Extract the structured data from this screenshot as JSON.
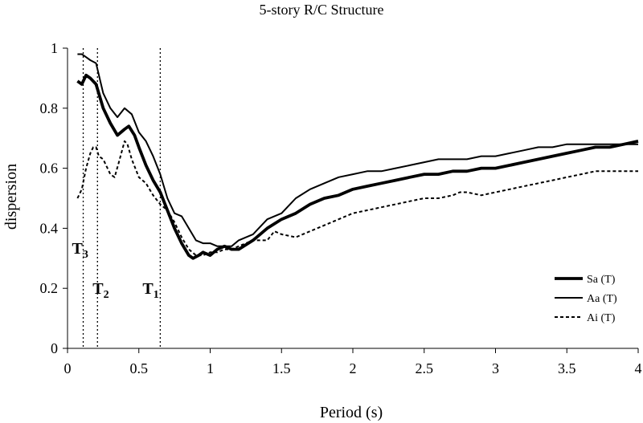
{
  "chart_data": {
    "type": "line",
    "title": "5-story R/C Structure",
    "xlabel": "Period (s)",
    "ylabel": "dispersion",
    "xlim": [
      0,
      4
    ],
    "ylim": [
      0,
      1
    ],
    "x_ticks": [
      0,
      0.5,
      1,
      1.5,
      2,
      2.5,
      3,
      3.5,
      4
    ],
    "y_ticks": [
      0,
      0.2,
      0.4,
      0.6,
      0.8,
      1
    ],
    "x_tick_labels": [
      "0",
      "0.5",
      "1",
      "1.5",
      "2",
      "2.5",
      "3",
      "3.5",
      "4"
    ],
    "y_tick_labels": [
      "0",
      "0.2",
      "0.4",
      "0.6",
      "0.8",
      "1"
    ],
    "grid": false,
    "legend_position": "bottom-right",
    "vertical_markers": [
      {
        "label": "T",
        "sub": "3",
        "x": 0.11
      },
      {
        "label": "T",
        "sub": "2",
        "x": 0.21
      },
      {
        "label": "T",
        "sub": "1",
        "x": 0.65
      }
    ],
    "series": [
      {
        "name": "Sa (T)",
        "style": "thick",
        "x": [
          0.07,
          0.1,
          0.13,
          0.16,
          0.2,
          0.25,
          0.3,
          0.35,
          0.4,
          0.43,
          0.47,
          0.5,
          0.55,
          0.6,
          0.65,
          0.7,
          0.75,
          0.8,
          0.85,
          0.88,
          0.92,
          0.95,
          1.0,
          1.05,
          1.1,
          1.15,
          1.2,
          1.3,
          1.4,
          1.5,
          1.6,
          1.7,
          1.8,
          1.9,
          2.0,
          2.1,
          2.2,
          2.3,
          2.4,
          2.5,
          2.6,
          2.7,
          2.8,
          2.9,
          3.0,
          3.1,
          3.2,
          3.3,
          3.4,
          3.5,
          3.6,
          3.7,
          3.8,
          3.9,
          4.0
        ],
        "y": [
          0.89,
          0.88,
          0.91,
          0.9,
          0.88,
          0.8,
          0.75,
          0.71,
          0.73,
          0.74,
          0.71,
          0.67,
          0.61,
          0.56,
          0.52,
          0.46,
          0.4,
          0.35,
          0.31,
          0.3,
          0.31,
          0.32,
          0.31,
          0.33,
          0.34,
          0.33,
          0.33,
          0.36,
          0.4,
          0.43,
          0.45,
          0.48,
          0.5,
          0.51,
          0.53,
          0.54,
          0.55,
          0.56,
          0.57,
          0.58,
          0.58,
          0.59,
          0.59,
          0.6,
          0.6,
          0.61,
          0.62,
          0.63,
          0.64,
          0.65,
          0.66,
          0.67,
          0.67,
          0.68,
          0.69
        ]
      },
      {
        "name": "Aa (T)",
        "style": "thin",
        "x": [
          0.07,
          0.1,
          0.13,
          0.16,
          0.2,
          0.25,
          0.3,
          0.35,
          0.4,
          0.45,
          0.5,
          0.55,
          0.6,
          0.65,
          0.7,
          0.75,
          0.8,
          0.85,
          0.9,
          0.95,
          1.0,
          1.05,
          1.1,
          1.15,
          1.2,
          1.3,
          1.4,
          1.5,
          1.6,
          1.7,
          1.8,
          1.9,
          2.0,
          2.1,
          2.2,
          2.3,
          2.4,
          2.5,
          2.6,
          2.7,
          2.8,
          2.9,
          3.0,
          3.1,
          3.2,
          3.3,
          3.4,
          3.5,
          3.6,
          3.7,
          3.8,
          3.9,
          4.0
        ],
        "y": [
          0.98,
          0.98,
          0.97,
          0.96,
          0.95,
          0.85,
          0.8,
          0.77,
          0.8,
          0.78,
          0.72,
          0.69,
          0.64,
          0.58,
          0.5,
          0.45,
          0.44,
          0.4,
          0.36,
          0.35,
          0.35,
          0.34,
          0.34,
          0.34,
          0.36,
          0.38,
          0.43,
          0.45,
          0.5,
          0.53,
          0.55,
          0.57,
          0.58,
          0.59,
          0.59,
          0.6,
          0.61,
          0.62,
          0.63,
          0.63,
          0.63,
          0.64,
          0.64,
          0.65,
          0.66,
          0.67,
          0.67,
          0.68,
          0.68,
          0.68,
          0.68,
          0.68,
          0.68
        ]
      },
      {
        "name": "Ai (T)",
        "style": "dashed",
        "x": [
          0.07,
          0.1,
          0.13,
          0.16,
          0.18,
          0.2,
          0.22,
          0.25,
          0.3,
          0.33,
          0.36,
          0.4,
          0.42,
          0.45,
          0.5,
          0.55,
          0.6,
          0.65,
          0.7,
          0.75,
          0.8,
          0.85,
          0.9,
          0.95,
          1.0,
          1.05,
          1.1,
          1.15,
          1.2,
          1.3,
          1.4,
          1.45,
          1.5,
          1.6,
          1.7,
          1.8,
          1.9,
          2.0,
          2.1,
          2.2,
          2.3,
          2.4,
          2.5,
          2.6,
          2.7,
          2.75,
          2.8,
          2.9,
          3.0,
          3.1,
          3.2,
          3.3,
          3.4,
          3.5,
          3.6,
          3.7,
          3.8,
          3.9,
          4.0
        ],
        "y": [
          0.5,
          0.53,
          0.6,
          0.65,
          0.67,
          0.67,
          0.64,
          0.63,
          0.58,
          0.57,
          0.62,
          0.69,
          0.68,
          0.63,
          0.57,
          0.55,
          0.51,
          0.48,
          0.46,
          0.42,
          0.37,
          0.33,
          0.31,
          0.31,
          0.32,
          0.32,
          0.33,
          0.33,
          0.34,
          0.36,
          0.36,
          0.39,
          0.38,
          0.37,
          0.39,
          0.41,
          0.43,
          0.45,
          0.46,
          0.47,
          0.48,
          0.49,
          0.5,
          0.5,
          0.51,
          0.52,
          0.52,
          0.51,
          0.52,
          0.53,
          0.54,
          0.55,
          0.56,
          0.57,
          0.58,
          0.59,
          0.59,
          0.59,
          0.59
        ]
      }
    ]
  }
}
